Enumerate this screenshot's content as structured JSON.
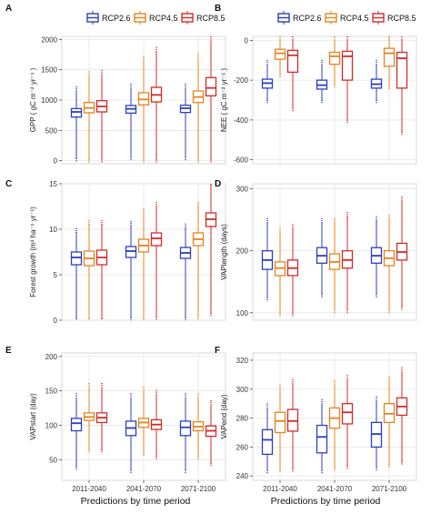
{
  "colors": {
    "RCP2.6": "#2b3fbf",
    "RCP4.5": "#e8821e",
    "RCP8.5": "#d42a2a",
    "panel_bg": "#ffffff",
    "grid": "#e6e6e6"
  },
  "legends": [
    {
      "entries": [
        "RCP2.6",
        "RCP4.5",
        "RCP8.5"
      ]
    },
    {
      "entries": [
        "RCP2.6",
        "RCP4.5",
        "RCP8.5"
      ]
    }
  ],
  "x_title": "Predictions by time period",
  "chart_data": [
    {
      "type": "boxplot",
      "letter": "A",
      "ylabel": "GPP ( gC m⁻² yr⁻¹ )",
      "ylim": [
        -50,
        2050
      ],
      "yticks": [
        "0",
        "500",
        "1000",
        "1500",
        "2000"
      ],
      "ytick_values": [
        0,
        500,
        1000,
        1500,
        2000
      ],
      "categories": [
        "2011-2040",
        "2041-2070",
        "2071-2100"
      ],
      "series": [
        {
          "name": "RCP2.6",
          "boxes": [
            {
              "whislo": 40,
              "q1": 720,
              "med": 805,
              "q3": 860,
              "whishi": 1150
            },
            {
              "whislo": 60,
              "q1": 785,
              "med": 855,
              "q3": 910,
              "whishi": 1200
            },
            {
              "whislo": 60,
              "q1": 795,
              "med": 865,
              "q3": 915,
              "whishi": 1200
            }
          ]
        },
        {
          "name": "RCP4.5",
          "boxes": [
            {
              "whislo": 20,
              "q1": 790,
              "med": 870,
              "q3": 960,
              "whishi": 1400
            },
            {
              "whislo": 20,
              "q1": 920,
              "med": 1010,
              "q3": 1120,
              "whishi": 1650
            },
            {
              "whislo": 20,
              "q1": 960,
              "med": 1050,
              "q3": 1150,
              "whishi": 1700
            }
          ]
        },
        {
          "name": "RCP8.5",
          "boxes": [
            {
              "whislo": 20,
              "q1": 805,
              "med": 895,
              "q3": 990,
              "whishi": 1420
            },
            {
              "whislo": 20,
              "q1": 970,
              "med": 1085,
              "q3": 1210,
              "whishi": 1800
            },
            {
              "whislo": 20,
              "q1": 1070,
              "med": 1200,
              "q3": 1370,
              "whishi": 1980
            }
          ]
        }
      ]
    },
    {
      "type": "boxplot",
      "letter": "B",
      "ylabel": "NEE ( gC m⁻² yr⁻¹ )",
      "ylim": [
        -620,
        20
      ],
      "yticks": [
        "0",
        "-200",
        "-400",
        "-600"
      ],
      "ytick_values": [
        0,
        -200,
        -400,
        -600
      ],
      "categories": [
        "2011-2040",
        "2041-2070",
        "2071-2100"
      ],
      "series": [
        {
          "name": "RCP2.6",
          "boxes": [
            {
              "whislo": -300,
              "q1": -240,
              "med": -215,
              "q3": -195,
              "whishi": -120
            },
            {
              "whislo": -300,
              "q1": -245,
              "med": -225,
              "q3": -200,
              "whishi": -120
            },
            {
              "whislo": -300,
              "q1": -240,
              "med": -220,
              "q3": -195,
              "whishi": -120
            }
          ]
        },
        {
          "name": "RCP4.5",
          "boxes": [
            {
              "whislo": -170,
              "q1": -95,
              "med": -65,
              "q3": -45,
              "whishi": 10
            },
            {
              "whislo": -220,
              "q1": -120,
              "med": -80,
              "q3": -60,
              "whishi": 10
            },
            {
              "whislo": -230,
              "q1": -130,
              "med": -65,
              "q3": -40,
              "whishi": 15
            }
          ]
        },
        {
          "name": "RCP8.5",
          "boxes": [
            {
              "whislo": -340,
              "q1": -160,
              "med": -75,
              "q3": -50,
              "whishi": 10
            },
            {
              "whislo": -400,
              "q1": -200,
              "med": -80,
              "q3": -55,
              "whishi": 10
            },
            {
              "whislo": -460,
              "q1": -240,
              "med": -90,
              "q3": -60,
              "whishi": 10
            }
          ]
        }
      ]
    },
    {
      "type": "boxplot",
      "letter": "C",
      "ylabel": "Forest growth (m³ ha⁻¹ yr⁻¹)",
      "ylim": [
        0,
        15
      ],
      "yticks": [
        "0",
        "5",
        "10",
        "15"
      ],
      "ytick_values": [
        0,
        5,
        10,
        15
      ],
      "categories": [
        "2011-2040",
        "2041-2070",
        "2071-2100"
      ],
      "series": [
        {
          "name": "RCP2.6",
          "boxes": [
            {
              "whislo": 0.2,
              "q1": 6.1,
              "med": 6.9,
              "q3": 7.5,
              "whishi": 9.6
            },
            {
              "whislo": 0.3,
              "q1": 6.9,
              "med": 7.6,
              "q3": 8.1,
              "whishi": 10.4
            },
            {
              "whislo": 0.3,
              "q1": 6.8,
              "med": 7.4,
              "q3": 8.0,
              "whishi": 10.1
            }
          ]
        },
        {
          "name": "RCP4.5",
          "boxes": [
            {
              "whislo": 0.2,
              "q1": 6.0,
              "med": 6.8,
              "q3": 7.6,
              "whishi": 10.5
            },
            {
              "whislo": 0.3,
              "q1": 7.5,
              "med": 8.2,
              "q3": 8.9,
              "whishi": 11.8
            },
            {
              "whislo": 0.5,
              "q1": 8.2,
              "med": 8.9,
              "q3": 9.6,
              "whishi": 12.5
            }
          ]
        },
        {
          "name": "RCP8.5",
          "boxes": [
            {
              "whislo": 0.2,
              "q1": 6.1,
              "med": 6.9,
              "q3": 7.7,
              "whishi": 10.5
            },
            {
              "whislo": 0.4,
              "q1": 8.2,
              "med": 9.0,
              "q3": 9.6,
              "whishi": 12.5
            },
            {
              "whislo": 0.8,
              "q1": 10.3,
              "med": 11.1,
              "q3": 11.8,
              "whishi": 14.9
            }
          ]
        }
      ]
    },
    {
      "type": "boxplot",
      "letter": "D",
      "ylabel": "VAPlength (days)",
      "ylim": [
        88,
        308
      ],
      "yticks": [
        "100",
        "200",
        "300"
      ],
      "ytick_values": [
        100,
        200,
        300
      ],
      "categories": [
        "2011-2040",
        "2041-2070",
        "2071-2100"
      ],
      "series": [
        {
          "name": "RCP2.6",
          "boxes": [
            {
              "whislo": 125,
              "q1": 170,
              "med": 185,
              "q3": 200,
              "whishi": 245
            },
            {
              "whislo": 130,
              "q1": 180,
              "med": 192,
              "q3": 205,
              "whishi": 245
            },
            {
              "whislo": 130,
              "q1": 180,
              "med": 192,
              "q3": 205,
              "whishi": 248
            }
          ]
        },
        {
          "name": "RCP4.5",
          "boxes": [
            {
              "whislo": 100,
              "q1": 160,
              "med": 172,
              "q3": 182,
              "whishi": 230
            },
            {
              "whislo": 105,
              "q1": 170,
              "med": 182,
              "q3": 195,
              "whishi": 245
            },
            {
              "whislo": 105,
              "q1": 176,
              "med": 188,
              "q3": 200,
              "whishi": 250
            }
          ]
        },
        {
          "name": "RCP8.5",
          "boxes": [
            {
              "whislo": 100,
              "q1": 160,
              "med": 172,
              "q3": 185,
              "whishi": 235
            },
            {
              "whislo": 105,
              "q1": 172,
              "med": 185,
              "q3": 200,
              "whishi": 255
            },
            {
              "whislo": 110,
              "q1": 185,
              "med": 198,
              "q3": 212,
              "whishi": 280
            }
          ]
        }
      ]
    },
    {
      "type": "boxplot",
      "letter": "E",
      "ylabel": "VAPstart (day)",
      "ylim": [
        20,
        205
      ],
      "yticks": [
        "50",
        "100",
        "150",
        "200"
      ],
      "ytick_values": [
        50,
        100,
        150,
        200
      ],
      "categories": [
        "2011-2040",
        "2041-2070",
        "2071-2100"
      ],
      "series": [
        {
          "name": "RCP2.6",
          "boxes": [
            {
              "whislo": 40,
              "q1": 92,
              "med": 103,
              "q3": 110,
              "whishi": 140
            },
            {
              "whislo": 35,
              "q1": 85,
              "med": 96,
              "q3": 106,
              "whishi": 140
            },
            {
              "whislo": 35,
              "q1": 85,
              "med": 97,
              "q3": 106,
              "whishi": 140
            }
          ]
        },
        {
          "name": "RCP4.5",
          "boxes": [
            {
              "whislo": 65,
              "q1": 107,
              "med": 112,
              "q3": 118,
              "whishi": 155
            },
            {
              "whislo": 60,
              "q1": 97,
              "med": 104,
              "q3": 110,
              "whishi": 150
            },
            {
              "whislo": 55,
              "q1": 92,
              "med": 98,
              "q3": 105,
              "whishi": 140
            }
          ]
        },
        {
          "name": "RCP8.5",
          "boxes": [
            {
              "whislo": 65,
              "q1": 104,
              "med": 111,
              "q3": 118,
              "whishi": 155
            },
            {
              "whislo": 55,
              "q1": 94,
              "med": 101,
              "q3": 108,
              "whishi": 145
            },
            {
              "whislo": 45,
              "q1": 84,
              "med": 92,
              "q3": 99,
              "whishi": 130
            }
          ]
        }
      ]
    },
    {
      "type": "boxplot",
      "letter": "F",
      "ylabel": "VAPend (day)",
      "ylim": [
        237,
        325
      ],
      "yticks": [
        "240",
        "260",
        "280",
        "300",
        "320"
      ],
      "ytick_values": [
        240,
        260,
        280,
        300,
        320
      ],
      "categories": [
        "2011-2040",
        "2041-2070",
        "2071-2100"
      ],
      "series": [
        {
          "name": "RCP2.6",
          "boxes": [
            {
              "whislo": 244,
              "q1": 255,
              "med": 265,
              "q3": 272,
              "whishi": 287
            },
            {
              "whislo": 244,
              "q1": 256,
              "med": 267,
              "q3": 275,
              "whishi": 290
            },
            {
              "whislo": 246,
              "q1": 260,
              "med": 269,
              "q3": 277,
              "whishi": 292
            }
          ]
        },
        {
          "name": "RCP4.5",
          "boxes": [
            {
              "whislo": 245,
              "q1": 270,
              "med": 278,
              "q3": 284,
              "whishi": 300
            },
            {
              "whislo": 246,
              "q1": 273,
              "med": 280,
              "q3": 287,
              "whishi": 303
            },
            {
              "whislo": 248,
              "q1": 277,
              "med": 283,
              "q3": 290,
              "whishi": 306
            }
          ]
        },
        {
          "name": "RCP8.5",
          "boxes": [
            {
              "whislo": 245,
              "q1": 271,
              "med": 278,
              "q3": 286,
              "whishi": 304
            },
            {
              "whislo": 247,
              "q1": 276,
              "med": 284,
              "q3": 290,
              "whishi": 307
            },
            {
              "whislo": 250,
              "q1": 282,
              "med": 288,
              "q3": 294,
              "whishi": 312
            }
          ]
        }
      ]
    }
  ]
}
